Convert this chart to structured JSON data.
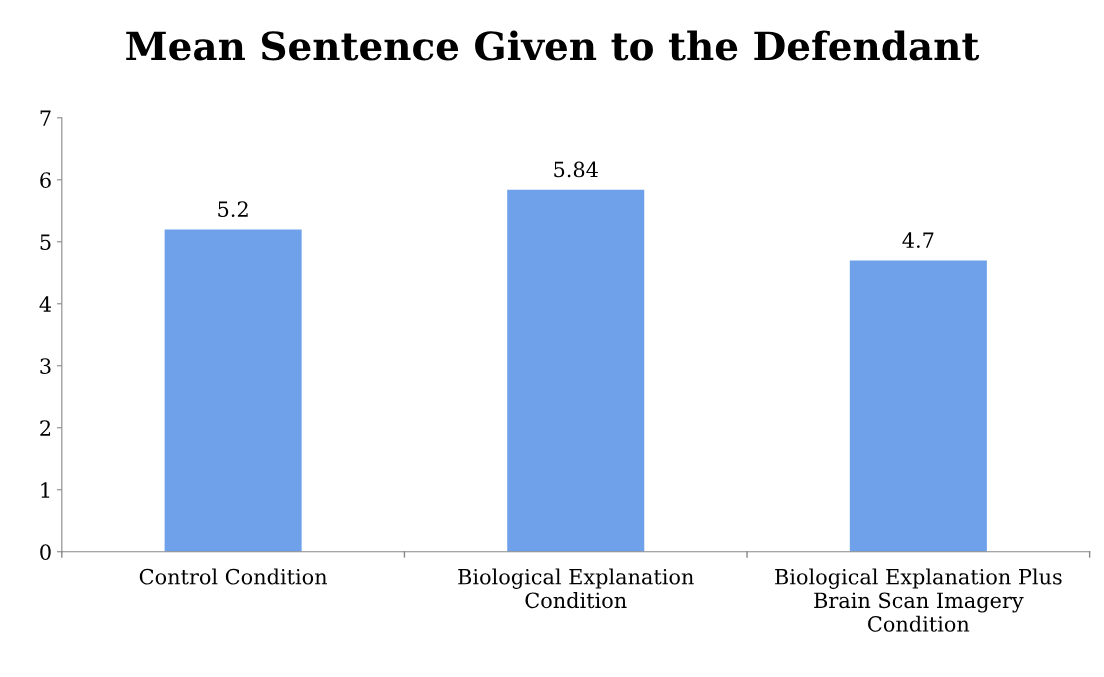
{
  "chart_data": {
    "type": "bar",
    "title": "Mean Sentence Given to the Defendant",
    "categories": [
      "Control Condition",
      "Biological Explanation\nCondition",
      "Biological Explanation Plus\nBrain Scan Imagery\nCondition"
    ],
    "values": [
      5.2,
      5.84,
      4.7
    ],
    "color": "#6fa0ea",
    "ylim": [
      0,
      7
    ],
    "yticks": [
      0,
      1,
      2,
      3,
      4,
      5,
      6,
      7
    ],
    "grid": false,
    "data_labels": true,
    "legend": false
  }
}
